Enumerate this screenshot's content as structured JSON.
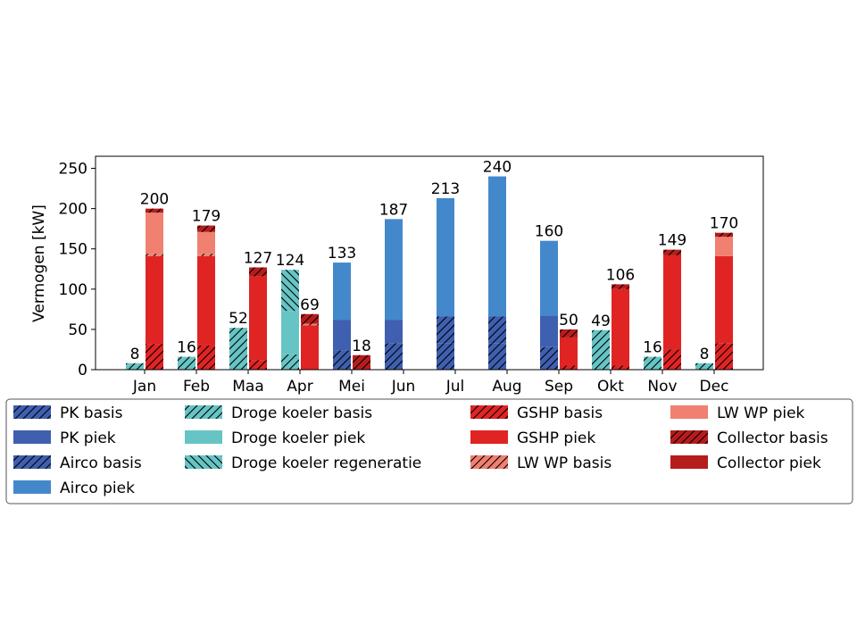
{
  "chart_data": {
    "type": "bar",
    "stacked": true,
    "ylabel": "Vermogen [kW]",
    "xlabel": "",
    "title": "",
    "ylim": [
      0,
      265
    ],
    "yticks": [
      0,
      50,
      100,
      150,
      200,
      250
    ],
    "grid": false,
    "legend_position": "bottom",
    "categories": [
      "Jan",
      "Feb",
      "Maa",
      "Apr",
      "Mei",
      "Jun",
      "Jul",
      "Aug",
      "Sep",
      "Okt",
      "Nov",
      "Dec"
    ],
    "groups": [
      {
        "name": "cooling",
        "offset": -1,
        "totals": [
          8,
          16,
          52,
          124,
          133,
          187,
          213,
          240,
          160,
          49,
          16,
          8
        ]
      },
      {
        "name": "heating",
        "offset": 1,
        "totals": [
          200,
          179,
          127,
          69,
          18,
          null,
          null,
          null,
          50,
          106,
          149,
          170
        ]
      }
    ],
    "series": [
      {
        "name": "PK basis",
        "group": "cooling",
        "color": "#3f5fb0",
        "hatch": "fwd",
        "values": [
          0,
          0,
          0,
          0,
          24,
          33,
          33,
          33,
          28,
          0,
          0,
          0
        ]
      },
      {
        "name": "PK piek",
        "group": "cooling",
        "color": "#3f5fb0",
        "hatch": "none",
        "values": [
          0,
          0,
          0,
          0,
          38,
          29,
          0,
          0,
          39,
          0,
          0,
          0
        ]
      },
      {
        "name": "Airco basis",
        "group": "cooling",
        "color": "#3f5fb0",
        "hatch": "fwd",
        "values": [
          0,
          0,
          0,
          0,
          0,
          0,
          33,
          33,
          0,
          0,
          0,
          0
        ]
      },
      {
        "name": "Airco piek",
        "group": "cooling",
        "color": "#4488cc",
        "hatch": "none",
        "values": [
          0,
          0,
          0,
          0,
          71,
          125,
          147,
          174,
          93,
          0,
          0,
          0
        ]
      },
      {
        "name": "Droge koeler basis",
        "group": "cooling",
        "color": "#66c4c4",
        "hatch": "fwd",
        "values": [
          8,
          16,
          52,
          19,
          0,
          0,
          0,
          0,
          0,
          49,
          16,
          8
        ]
      },
      {
        "name": "Droge koeler piek",
        "group": "cooling",
        "color": "#66c4c4",
        "hatch": "none",
        "values": [
          0,
          0,
          0,
          54,
          0,
          0,
          0,
          0,
          0,
          0,
          0,
          0
        ]
      },
      {
        "name": "Droge koeler regeneratie",
        "group": "cooling",
        "color": "#66c4c4",
        "hatch": "back",
        "values": [
          0,
          0,
          0,
          51,
          0,
          0,
          0,
          0,
          0,
          0,
          0,
          0
        ]
      },
      {
        "name": "GSHP basis",
        "group": "heating",
        "color": "#e02424",
        "hatch": "fwd",
        "values": [
          32,
          30,
          12,
          0,
          0,
          0,
          0,
          0,
          5,
          5,
          25,
          33
        ]
      },
      {
        "name": "GSHP piek",
        "group": "heating",
        "color": "#e02424",
        "hatch": "none",
        "values": [
          109,
          111,
          104,
          55,
          0,
          0,
          0,
          0,
          35,
          95,
          117,
          108
        ]
      },
      {
        "name": "LW WP basis",
        "group": "heating",
        "color": "#f08070",
        "hatch": "fwd",
        "values": [
          3,
          3,
          0,
          2,
          0,
          0,
          0,
          0,
          0,
          0,
          0,
          0
        ]
      },
      {
        "name": "LW WP piek",
        "group": "heating",
        "color": "#f08070",
        "hatch": "none",
        "values": [
          51,
          27,
          0,
          0,
          0,
          0,
          0,
          0,
          0,
          0,
          0,
          24
        ]
      },
      {
        "name": "Collector basis",
        "group": "heating",
        "color": "#b71c1c",
        "hatch": "fwd",
        "values": [
          5,
          8,
          11,
          12,
          18,
          0,
          0,
          0,
          10,
          6,
          7,
          5
        ]
      },
      {
        "name": "Collector piek",
        "group": "heating",
        "color": "#b71c1c",
        "hatch": "none",
        "values": [
          0,
          0,
          0,
          0,
          0,
          0,
          0,
          0,
          0,
          0,
          0,
          0
        ]
      }
    ]
  }
}
